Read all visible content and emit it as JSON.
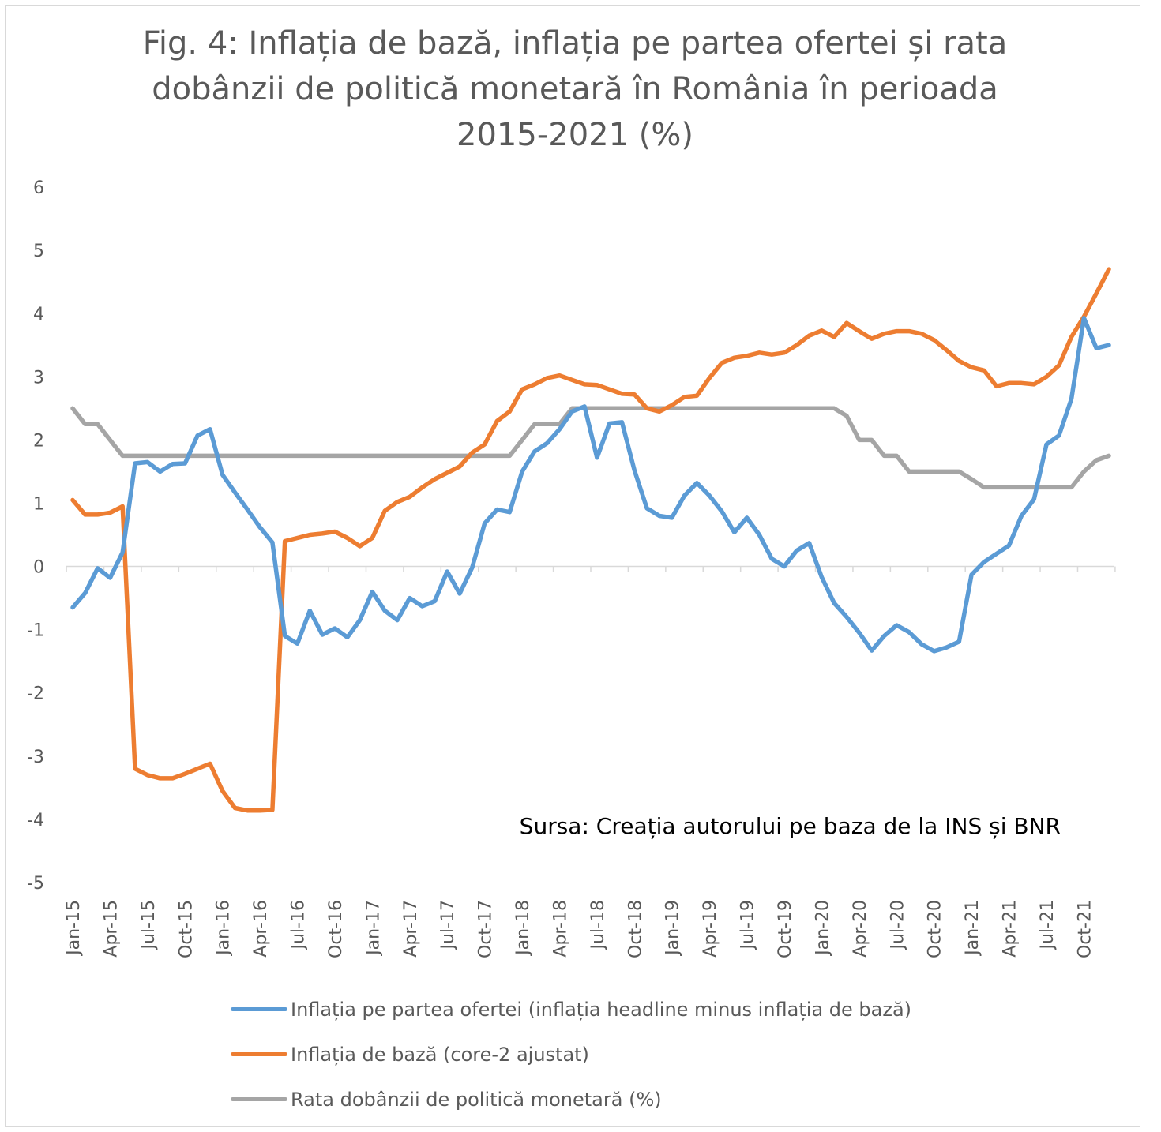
{
  "chart_data": {
    "type": "line",
    "title": "Fig. 4: Inflația de bază, inflația pe partea ofertei și rata dobânzii de politică monetară în România în perioada 2015-2021 (%)",
    "title_lines": [
      "Fig. 4: Inflația de bază, inflația pe partea ofertei și rata",
      "dobânzii de politică monetară în România în perioada",
      "2015-2021 (%)"
    ],
    "annotation": "Sursa: Creația autorului pe baza de la INS și BNR",
    "xlabel": "",
    "ylabel": "",
    "ylim": [
      -5,
      6
    ],
    "yticks": [
      6,
      5,
      4,
      3,
      2,
      1,
      0,
      -1,
      -2,
      -3,
      -4,
      -5
    ],
    "grid": false,
    "legend_position": "bottom",
    "x_start": "Jan-15",
    "x_tick_labels": [
      "Jan-15",
      "Apr-15",
      "Jul-15",
      "Oct-15",
      "Jan-16",
      "Apr-16",
      "Jul-16",
      "Oct-16",
      "Jan-17",
      "Apr-17",
      "Jul-17",
      "Oct-17",
      "Jan-18",
      "Apr-18",
      "Jul-18",
      "Oct-18",
      "Jan-19",
      "Apr-19",
      "Jul-19",
      "Oct-19",
      "Jan-20",
      "Apr-20",
      "Jul-20",
      "Oct-20",
      "Jan-21",
      "Apr-21",
      "Jul-21",
      "Oct-21"
    ],
    "series": [
      {
        "name": "Inflația pe partea ofertei (inflația headline minus inflația de bază)",
        "color": "#5b9bd5",
        "values": [
          -0.65,
          -0.42,
          -0.03,
          -0.18,
          0.22,
          1.63,
          1.65,
          1.5,
          1.62,
          1.63,
          2.07,
          2.17,
          1.45,
          1.17,
          0.9,
          0.62,
          0.38,
          -1.1,
          -1.22,
          -0.7,
          -1.08,
          -0.98,
          -1.12,
          -0.85,
          -0.4,
          -0.7,
          -0.85,
          -0.5,
          -0.63,
          -0.55,
          -0.08,
          -0.43,
          -0.02,
          0.68,
          0.9,
          0.86,
          1.5,
          1.82,
          1.95,
          2.17,
          2.45,
          2.53,
          1.72,
          2.26,
          2.28,
          1.52,
          0.92,
          0.8,
          0.77,
          1.12,
          1.32,
          1.12,
          0.87,
          0.54,
          0.77,
          0.5,
          0.12,
          0.0,
          0.25,
          0.37,
          -0.17,
          -0.58,
          -0.8,
          -1.05,
          -1.33,
          -1.1,
          -0.93,
          -1.04,
          -1.23,
          -1.34,
          -1.28,
          -1.19,
          -0.13,
          0.07,
          0.2,
          0.33,
          0.8,
          1.06,
          1.93,
          2.07,
          2.65,
          3.93,
          3.45,
          3.5
        ]
      },
      {
        "name": "Inflația de bază (core-2 ajustat)",
        "color": "#ed7d31",
        "values": [
          1.05,
          0.82,
          0.82,
          0.85,
          0.95,
          -3.2,
          -3.3,
          -3.35,
          -3.35,
          -3.28,
          -3.2,
          -3.12,
          -3.55,
          -3.82,
          -3.86,
          -3.86,
          -3.85,
          0.4,
          0.45,
          0.5,
          0.52,
          0.55,
          0.45,
          0.32,
          0.45,
          0.88,
          1.02,
          1.1,
          1.25,
          1.38,
          1.48,
          1.58,
          1.8,
          1.93,
          2.3,
          2.45,
          2.8,
          2.88,
          2.98,
          3.02,
          2.95,
          2.88,
          2.87,
          2.8,
          2.73,
          2.72,
          2.5,
          2.45,
          2.55,
          2.68,
          2.7,
          2.98,
          3.22,
          3.3,
          3.33,
          3.38,
          3.35,
          3.38,
          3.5,
          3.65,
          3.73,
          3.63,
          3.85,
          3.72,
          3.6,
          3.68,
          3.72,
          3.72,
          3.68,
          3.58,
          3.42,
          3.25,
          3.15,
          3.1,
          2.85,
          2.9,
          2.9,
          2.88,
          3.0,
          3.18,
          3.63,
          3.95,
          4.32,
          4.7
        ]
      },
      {
        "name": "Rata dobânzii de politică monetară (%)",
        "color": "#a5a5a5",
        "values": [
          2.5,
          2.25,
          2.25,
          2.0,
          1.75,
          1.75,
          1.75,
          1.75,
          1.75,
          1.75,
          1.75,
          1.75,
          1.75,
          1.75,
          1.75,
          1.75,
          1.75,
          1.75,
          1.75,
          1.75,
          1.75,
          1.75,
          1.75,
          1.75,
          1.75,
          1.75,
          1.75,
          1.75,
          1.75,
          1.75,
          1.75,
          1.75,
          1.75,
          1.75,
          1.75,
          1.75,
          2.0,
          2.25,
          2.25,
          2.25,
          2.5,
          2.5,
          2.5,
          2.5,
          2.5,
          2.5,
          2.5,
          2.5,
          2.5,
          2.5,
          2.5,
          2.5,
          2.5,
          2.5,
          2.5,
          2.5,
          2.5,
          2.5,
          2.5,
          2.5,
          2.5,
          2.5,
          2.38,
          2.0,
          2.0,
          1.75,
          1.75,
          1.5,
          1.5,
          1.5,
          1.5,
          1.5,
          1.38,
          1.25,
          1.25,
          1.25,
          1.25,
          1.25,
          1.25,
          1.25,
          1.25,
          1.5,
          1.68,
          1.75
        ]
      }
    ]
  }
}
